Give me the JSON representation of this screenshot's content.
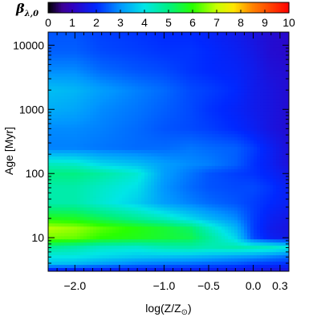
{
  "chart_data": {
    "type": "heatmap",
    "colorbar": {
      "label": "β",
      "label_subscript": "λ,0",
      "ticks": [
        "0",
        "1",
        "2",
        "3",
        "4",
        "5",
        "6",
        "7",
        "8",
        "9",
        "10"
      ],
      "range": [
        0,
        10
      ],
      "colormap": "rainbow"
    },
    "xlabel_main": "log(Z/Z",
    "xlabel_sub": "⊙",
    "xlabel_close": ")",
    "ylabel": "Age [Myr]",
    "xlim": [
      -2.3,
      0.4
    ],
    "ylim": [
      3,
      16000
    ],
    "y_scale": "log",
    "x_ticks": [
      {
        "value": -2.0,
        "label": "−2.0"
      },
      {
        "value": -1.0,
        "label": "−1.0"
      },
      {
        "value": -0.5,
        "label": "−0.5"
      },
      {
        "value": 0.0,
        "label": "0.0"
      },
      {
        "value": 0.3,
        "label": "0.3"
      }
    ],
    "y_ticks": [
      {
        "value": 10,
        "label": "10"
      },
      {
        "value": 100,
        "label": "100"
      },
      {
        "value": 1000,
        "label": "1000"
      },
      {
        "value": 10000,
        "label": "10000"
      }
    ],
    "grid_logZ": [
      -2.3,
      -2.0,
      -1.7,
      -1.3,
      -1.0,
      -0.7,
      -0.5,
      -0.2,
      0.0,
      0.2,
      0.4
    ],
    "grid_age": [
      3,
      4,
      5,
      7,
      10,
      14,
      20,
      35,
      60,
      100,
      140,
      250,
      500,
      1000,
      2000,
      4000,
      8000,
      16000
    ],
    "values": [
      [
        1.6,
        1.6,
        1.6,
        1.6,
        1.6,
        1.6,
        1.6,
        1.5,
        1.5,
        1.4,
        1.4
      ],
      [
        3.6,
        3.5,
        3.2,
        2.9,
        2.8,
        2.7,
        2.6,
        2.5,
        2.3,
        2.2,
        2.1
      ],
      [
        4.0,
        4.0,
        3.8,
        3.6,
        3.5,
        3.4,
        3.3,
        3.1,
        3.0,
        2.8,
        2.6
      ],
      [
        4.8,
        4.6,
        4.3,
        4.2,
        4.5,
        4.6,
        4.5,
        4.6,
        4.5,
        4.4,
        4.1
      ],
      [
        6.5,
        6.4,
        6.0,
        5.8,
        5.6,
        5.4,
        4.8,
        3.8,
        2.3,
        1.8,
        1.6
      ],
      [
        6.9,
        6.7,
        6.3,
        5.9,
        5.6,
        5.2,
        4.4,
        3.4,
        2.2,
        1.7,
        1.5
      ],
      [
        5.8,
        5.7,
        5.3,
        4.8,
        4.4,
        3.8,
        3.4,
        2.9,
        2.2,
        1.8,
        1.6
      ],
      [
        4.6,
        4.6,
        4.2,
        3.7,
        3.1,
        2.8,
        2.6,
        2.4,
        2.2,
        2.0,
        1.8
      ],
      [
        4.6,
        4.6,
        4.3,
        3.9,
        3.0,
        2.6,
        2.4,
        2.3,
        2.3,
        2.1,
        1.8
      ],
      [
        5.0,
        5.0,
        4.7,
        4.2,
        3.1,
        2.7,
        2.4,
        2.2,
        2.1,
        1.9,
        1.6
      ],
      [
        4.4,
        4.3,
        3.8,
        3.5,
        3.1,
        2.9,
        2.8,
        2.5,
        2.1,
        1.8,
        1.4
      ],
      [
        2.8,
        2.8,
        2.7,
        2.6,
        2.6,
        2.7,
        2.6,
        2.5,
        2.2,
        1.8,
        1.4
      ],
      [
        2.9,
        2.9,
        2.8,
        2.6,
        2.4,
        2.3,
        2.2,
        2.0,
        1.8,
        1.5,
        1.3
      ],
      [
        3.3,
        3.2,
        2.9,
        2.7,
        2.5,
        2.3,
        2.1,
        1.9,
        1.7,
        1.5,
        1.3
      ],
      [
        3.5,
        3.4,
        3.1,
        2.8,
        2.6,
        2.3,
        2.2,
        2.0,
        1.7,
        1.5,
        1.3
      ],
      [
        2.9,
        2.9,
        2.6,
        2.4,
        2.3,
        2.1,
        2.0,
        1.9,
        1.7,
        1.4,
        1.3
      ],
      [
        2.5,
        2.5,
        2.3,
        2.2,
        2.1,
        2.1,
        2.0,
        1.8,
        1.6,
        1.3,
        1.2
      ],
      [
        2.4,
        2.4,
        2.2,
        2.1,
        2.0,
        2.0,
        1.9,
        1.7,
        1.5,
        1.3,
        1.2
      ]
    ]
  }
}
